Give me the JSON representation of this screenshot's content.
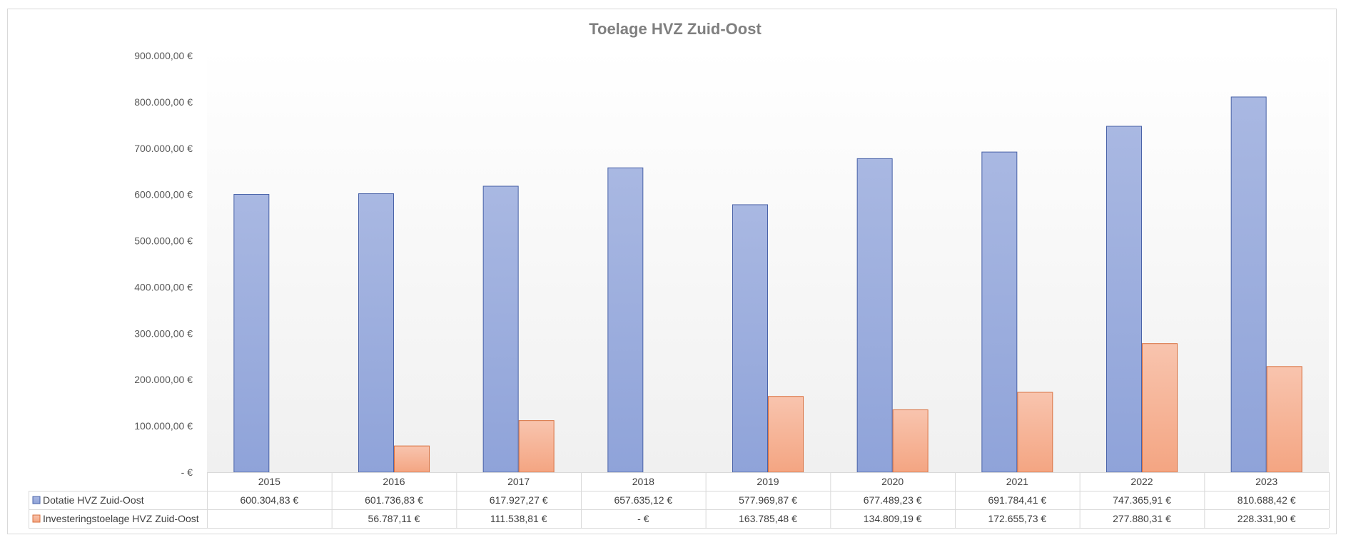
{
  "chart_data": {
    "type": "bar",
    "title": "Toelage HVZ Zuid-Oost",
    "xlabel": "",
    "ylabel": "",
    "ylim": [
      0,
      900000
    ],
    "yticks": [
      0,
      100000,
      200000,
      300000,
      400000,
      500000,
      600000,
      700000,
      800000,
      900000
    ],
    "ytick_labels": [
      "-  €",
      "100.000,00 €",
      "200.000,00 €",
      "300.000,00 €",
      "400.000,00 €",
      "500.000,00 €",
      "600.000,00 €",
      "700.000,00 €",
      "800.000,00 €",
      "900.000,00 €"
    ],
    "grid": false,
    "legend": "data-table",
    "categories": [
      "2015",
      "2016",
      "2017",
      "2018",
      "2019",
      "2020",
      "2021",
      "2022",
      "2023"
    ],
    "series": [
      {
        "name": "Dotatie HVZ Zuid-Oost",
        "values": [
          600304.83,
          601736.83,
          617927.27,
          657635.12,
          577969.87,
          677489.23,
          691784.41,
          747365.91,
          810688.42
        ],
        "labels": [
          "600.304,83 €",
          "601.736,83 €",
          "617.927,27 €",
          "657.635,12 €",
          "577.969,87 €",
          "677.489,23 €",
          "691.784,41 €",
          "747.365,91 €",
          "810.688,42 €"
        ],
        "color": "#8fa3d9",
        "color_top": "#a9b8e2",
        "border": "#4a63a8"
      },
      {
        "name": "Investeringstoelage HVZ Zuid-Oost",
        "values": [
          null,
          56787.11,
          111538.81,
          0,
          163785.48,
          134809.19,
          172655.73,
          277880.31,
          228331.9
        ],
        "labels": [
          "",
          "56.787,11 €",
          "111.538,81 €",
          "-  €",
          "163.785,48 €",
          "134.809,19 €",
          "172.655,73 €",
          "277.880,31 €",
          "228.331,90 €"
        ],
        "color": "#f4a582",
        "color_top": "#f8c4ae",
        "border": "#d9703f"
      }
    ]
  }
}
